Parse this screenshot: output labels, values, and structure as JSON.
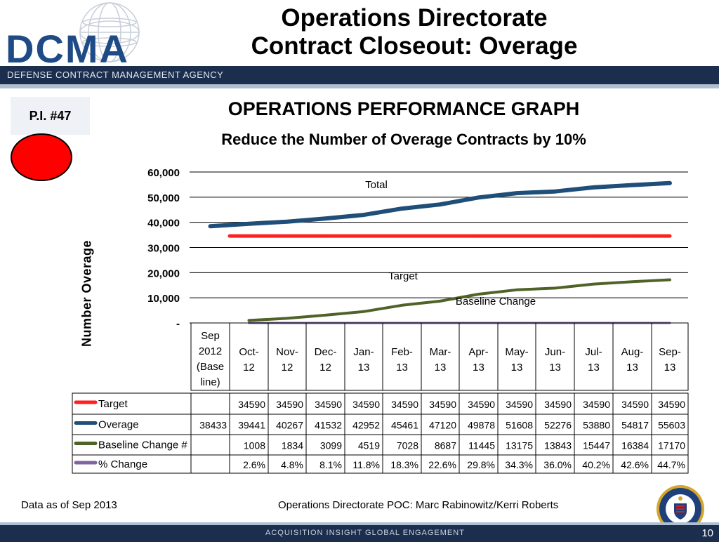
{
  "header": {
    "logo_text": "DCMA",
    "agency": "DEFENSE CONTRACT MANAGEMENT AGENCY",
    "title_line1": "Operations Directorate",
    "title_line2": "Contract Closeout: Overage"
  },
  "pi": {
    "label": "P.I. #47",
    "status_color": "#ff0000"
  },
  "graph": {
    "title": "OPERATIONS PERFORMANCE GRAPH",
    "subtitle": "Reduce the Number of Overage Contracts by 10%"
  },
  "chart_data": {
    "type": "line",
    "ylabel": "Number Overage",
    "ylim": [
      0,
      60000
    ],
    "y_ticks": [
      "-",
      "10,000",
      "20,000",
      "30,000",
      "40,000",
      "50,000",
      "60,000"
    ],
    "grid": true,
    "categories": [
      [
        "Sep",
        "2012",
        "(Base",
        "line)"
      ],
      [
        "Oct-",
        "12"
      ],
      [
        "Nov-",
        "12"
      ],
      [
        "Dec-",
        "12"
      ],
      [
        "Jan-",
        "13"
      ],
      [
        "Feb-",
        "13"
      ],
      [
        "Mar-",
        "13"
      ],
      [
        "Apr-",
        "13"
      ],
      [
        "May-",
        "13"
      ],
      [
        "Jun-",
        "13"
      ],
      [
        "Jul-",
        "13"
      ],
      [
        "Aug-",
        "13"
      ],
      [
        "Sep-",
        "13"
      ]
    ],
    "annotations": [
      "Total",
      "Target",
      "Baseline Change"
    ],
    "series": [
      {
        "name": "Target",
        "color": "#ff1f1f",
        "values": [
          null,
          34590,
          34590,
          34590,
          34590,
          34590,
          34590,
          34590,
          34590,
          34590,
          34590,
          34590,
          34590
        ],
        "labels": [
          "",
          "34590",
          "34590",
          "34590",
          "34590",
          "34590",
          "34590",
          "34590",
          "34590",
          "34590",
          "34590",
          "34590",
          "34590"
        ]
      },
      {
        "name": "Overage",
        "color": "#1f4e79",
        "values": [
          38433,
          39441,
          40267,
          41532,
          42952,
          45461,
          47120,
          49878,
          51608,
          52276,
          53880,
          54817,
          55603
        ],
        "labels": [
          "38433",
          "39441",
          "40267",
          "41532",
          "42952",
          "45461",
          "47120",
          "49878",
          "51608",
          "52276",
          "53880",
          "54817",
          "55603"
        ]
      },
      {
        "name": "Baseline Change #",
        "color": "#4f6228",
        "values": [
          null,
          1008,
          1834,
          3099,
          4519,
          7028,
          8687,
          11445,
          13175,
          13843,
          15447,
          16384,
          17170
        ],
        "labels": [
          "",
          "1008",
          "1834",
          "3099",
          "4519",
          "7028",
          "8687",
          "11445",
          "13175",
          "13843",
          "15447",
          "16384",
          "17170"
        ]
      },
      {
        "name": "% Change",
        "color": "#8064a2",
        "values": [
          null,
          2.6,
          4.8,
          8.1,
          11.8,
          18.3,
          22.6,
          29.8,
          34.3,
          36.0,
          40.2,
          42.6,
          44.7
        ],
        "labels": [
          "",
          "2.6%",
          "4.8%",
          "8.1%",
          "11.8%",
          "18.3%",
          "22.6%",
          "29.8%",
          "34.3%",
          "36.0%",
          "40.2%",
          "42.6%",
          "44.7%"
        ]
      }
    ]
  },
  "footer": {
    "data_as_of": "Data as of Sep 2013",
    "poc": "Operations Directorate POC:  Marc Rabinowitz/Kerri Roberts",
    "tagline": "ACQUISITION INSIGHT    GLOBAL ENGAGEMENT",
    "page_number": "10"
  }
}
